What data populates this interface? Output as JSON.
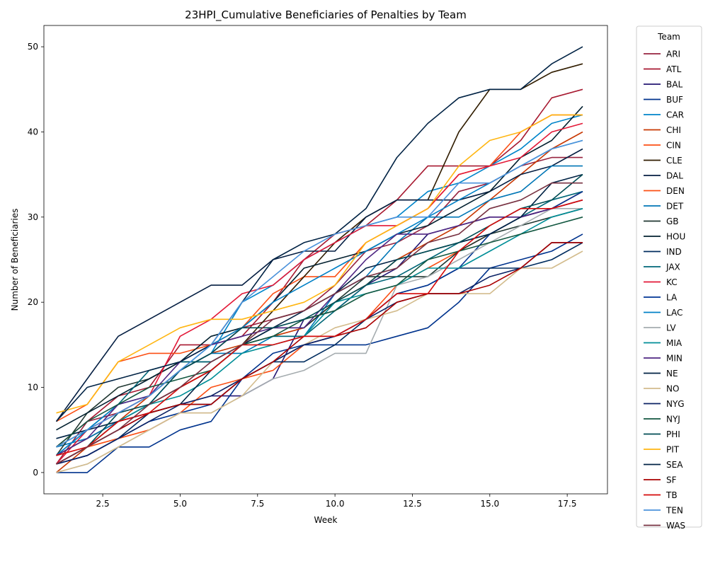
{
  "chart_data": {
    "type": "line",
    "title": "23HPI_Cumulative Beneficiaries of Penalties by Team",
    "xlabel": "Week",
    "ylabel": "Number of Beneficiaries",
    "xlim": [
      0.6,
      18.8
    ],
    "ylim": [
      -2.5,
      52.5
    ],
    "xticks": [
      2.5,
      5.0,
      7.5,
      10.0,
      12.5,
      15.0,
      17.5
    ],
    "xtick_labels": [
      "2.5",
      "5.0",
      "7.5",
      "10.0",
      "12.5",
      "15.0",
      "17.5"
    ],
    "yticks": [
      0,
      10,
      20,
      30,
      40,
      50
    ],
    "ytick_labels": [
      "0",
      "10",
      "20",
      "30",
      "40",
      "50"
    ],
    "grid": false,
    "legend": {
      "title": "Team",
      "placement": "outside-right"
    },
    "x": [
      1,
      2,
      3,
      4,
      5,
      6,
      7,
      8,
      9,
      10,
      11,
      12,
      13,
      14,
      15,
      16,
      17,
      18
    ],
    "series": [
      {
        "name": "ARI",
        "color": "#97233F",
        "values": [
          1,
          6,
          7,
          9,
          12,
          14,
          17,
          18,
          19,
          22,
          26,
          27,
          29,
          33,
          34,
          36,
          37,
          37
        ]
      },
      {
        "name": "ATL",
        "color": "#A71930",
        "values": [
          3,
          6,
          9,
          10,
          15,
          15,
          16,
          20,
          25,
          28,
          29,
          32,
          36,
          36,
          36,
          39,
          44,
          45
        ]
      },
      {
        "name": "BAL",
        "color": "#241773",
        "values": [
          1,
          3,
          5,
          7,
          8,
          9,
          9,
          11,
          18,
          19,
          22,
          24,
          28,
          29,
          30,
          30,
          31,
          33
        ]
      },
      {
        "name": "BUF",
        "color": "#00338D",
        "values": [
          0,
          0,
          3,
          3,
          5,
          6,
          11,
          14,
          15,
          15,
          15,
          16,
          17,
          20,
          24,
          25,
          26,
          28
        ]
      },
      {
        "name": "CAR",
        "color": "#0085CA",
        "values": [
          2,
          5,
          7,
          9,
          12,
          14,
          20,
          22,
          25,
          27,
          29,
          30,
          33,
          34,
          36,
          38,
          41,
          42
        ]
      },
      {
        "name": "CHI",
        "color": "#C83803",
        "values": [
          0,
          3,
          6,
          9,
          12,
          14,
          15,
          16,
          17,
          20,
          22,
          25,
          27,
          29,
          32,
          35,
          38,
          40
        ]
      },
      {
        "name": "CIN",
        "color": "#FB4F14",
        "values": [
          6,
          8,
          13,
          14,
          14,
          15,
          17,
          21,
          23,
          23,
          27,
          29,
          31,
          35,
          36,
          40,
          42,
          42
        ]
      },
      {
        "name": "CLE",
        "color": "#311D00",
        "values": [
          2,
          4,
          6,
          8,
          10,
          12,
          15,
          19,
          23,
          27,
          30,
          32,
          32,
          40,
          45,
          45,
          47,
          48
        ]
      },
      {
        "name": "DAL",
        "color": "#041E42",
        "values": [
          6,
          11,
          16,
          18,
          20,
          22,
          22,
          25,
          26,
          26,
          30,
          32,
          32,
          32,
          33,
          35,
          36,
          38
        ]
      },
      {
        "name": "DEN",
        "color": "#FB4F14",
        "values": [
          1,
          3,
          4,
          5,
          7,
          10,
          11,
          12,
          15,
          16,
          18,
          22,
          24,
          26,
          28,
          30,
          31,
          33
        ]
      },
      {
        "name": "DET",
        "color": "#0076B6",
        "values": [
          3,
          4,
          6,
          8,
          12,
          14,
          14,
          16,
          16,
          21,
          23,
          27,
          30,
          30,
          32,
          33,
          36,
          36
        ]
      },
      {
        "name": "GB",
        "color": "#203731",
        "values": [
          2,
          7,
          10,
          11,
          13,
          13,
          15,
          17,
          17,
          20,
          23,
          23,
          23,
          26,
          28,
          29,
          30,
          31
        ]
      },
      {
        "name": "HOU",
        "color": "#03202F",
        "values": [
          5,
          7,
          9,
          11,
          13,
          16,
          17,
          20,
          24,
          25,
          26,
          28,
          29,
          31,
          33,
          37,
          39,
          43
        ]
      },
      {
        "name": "IND",
        "color": "#002C5F",
        "values": [
          1,
          2,
          4,
          7,
          8,
          8,
          11,
          13,
          13,
          15,
          18,
          21,
          22,
          24,
          24,
          24,
          25,
          27
        ]
      },
      {
        "name": "JAX",
        "color": "#006778",
        "values": [
          3,
          5,
          8,
          12,
          13,
          13,
          15,
          16,
          16,
          19,
          22,
          23,
          25,
          27,
          28,
          30,
          32,
          33
        ]
      },
      {
        "name": "KC",
        "color": "#E31837",
        "values": [
          1,
          5,
          7,
          9,
          16,
          18,
          21,
          22,
          25,
          27,
          29,
          29,
          31,
          35,
          36,
          37,
          40,
          41
        ]
      },
      {
        "name": "LA",
        "color": "#003594",
        "values": [
          1,
          2,
          4,
          6,
          7,
          8,
          11,
          13,
          15,
          16,
          18,
          21,
          22,
          24,
          28,
          30,
          31,
          33
        ]
      },
      {
        "name": "LAC",
        "color": "#0080C6",
        "values": [
          2,
          5,
          8,
          9,
          12,
          15,
          17,
          20,
          22,
          24,
          26,
          28,
          30,
          32,
          34,
          36,
          38,
          39
        ]
      },
      {
        "name": "LV",
        "color": "#A5ACAF",
        "values": [
          0,
          1,
          3,
          5,
          7,
          7,
          9,
          11,
          12,
          14,
          14,
          22,
          23,
          25,
          27,
          29,
          31,
          31
        ]
      },
      {
        "name": "MIA",
        "color": "#008E97",
        "values": [
          1,
          3,
          6,
          8,
          9,
          11,
          14,
          15,
          16,
          20,
          21,
          22,
          24,
          24,
          26,
          28,
          30,
          31
        ]
      },
      {
        "name": "MIN",
        "color": "#4F2683",
        "values": [
          2,
          4,
          8,
          9,
          13,
          15,
          16,
          17,
          17,
          21,
          25,
          28,
          28,
          29,
          30,
          30,
          31,
          32
        ]
      },
      {
        "name": "NE",
        "color": "#002244",
        "values": [
          4,
          5,
          6,
          7,
          8,
          12,
          15,
          17,
          19,
          21,
          24,
          25,
          26,
          27,
          28,
          30,
          34,
          35
        ]
      },
      {
        "name": "NO",
        "color": "#D3BC8D",
        "values": [
          0,
          1,
          3,
          5,
          7,
          7,
          9,
          13,
          15,
          17,
          18,
          19,
          21,
          21,
          21,
          24,
          24,
          26
        ]
      },
      {
        "name": "NYG",
        "color": "#0B2265",
        "values": [
          1,
          2,
          4,
          6,
          8,
          9,
          11,
          13,
          15,
          16,
          18,
          20,
          21,
          21,
          23,
          24,
          27,
          27
        ]
      },
      {
        "name": "NYJ",
        "color": "#125740",
        "values": [
          3,
          6,
          8,
          10,
          11,
          12,
          15,
          16,
          18,
          19,
          21,
          22,
          25,
          26,
          27,
          28,
          29,
          30
        ]
      },
      {
        "name": "PHI",
        "color": "#004C54",
        "values": [
          1,
          3,
          7,
          8,
          12,
          14,
          17,
          17,
          18,
          20,
          22,
          25,
          26,
          27,
          29,
          31,
          32,
          35
        ]
      },
      {
        "name": "PIT",
        "color": "#FFB612",
        "values": [
          7,
          8,
          13,
          15,
          17,
          18,
          18,
          19,
          20,
          22,
          27,
          29,
          31,
          36,
          39,
          40,
          42,
          42
        ]
      },
      {
        "name": "SEA",
        "color": "#002244",
        "values": [
          6,
          10,
          11,
          12,
          13,
          15,
          20,
          25,
          27,
          28,
          31,
          37,
          41,
          44,
          45,
          45,
          48,
          50
        ]
      },
      {
        "name": "SF",
        "color": "#AA0000",
        "values": [
          1,
          3,
          5,
          7,
          8,
          8,
          11,
          13,
          16,
          16,
          17,
          20,
          21,
          21,
          22,
          24,
          27,
          27
        ]
      },
      {
        "name": "TB",
        "color": "#D50A0A",
        "values": [
          2,
          3,
          6,
          7,
          10,
          12,
          15,
          15,
          16,
          16,
          18,
          21,
          21,
          26,
          29,
          31,
          31,
          32
        ]
      },
      {
        "name": "TEN",
        "color": "#4B92DB",
        "values": [
          3,
          5,
          7,
          9,
          12,
          15,
          20,
          23,
          26,
          28,
          29,
          30,
          30,
          34,
          34,
          36,
          38,
          39
        ]
      },
      {
        "name": "WAS",
        "color": "#773141",
        "values": [
          1,
          3,
          5,
          8,
          10,
          13,
          15,
          18,
          19,
          21,
          23,
          24,
          27,
          28,
          31,
          32,
          34,
          34
        ]
      }
    ]
  }
}
